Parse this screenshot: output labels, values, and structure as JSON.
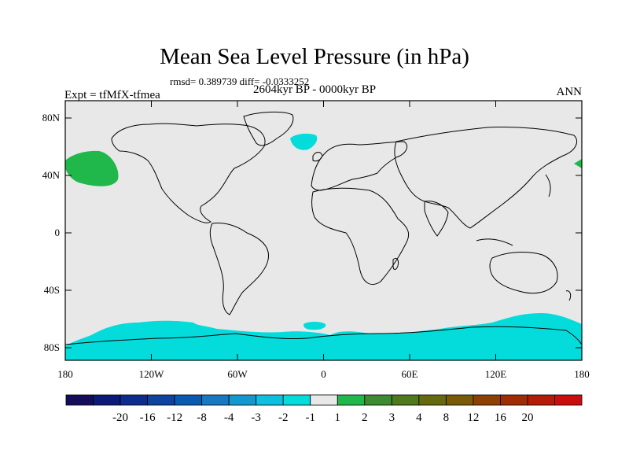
{
  "plot": {
    "title": "Mean Sea Level Pressure (in hPa)",
    "stats": "rmsd= 0.389739 diff= -0.0333252",
    "period": "2604kyr BP - 0000kyr BP",
    "experiment": "Expt = tfMfX-tfmea",
    "season": "ANN"
  },
  "axes": {
    "lat_labels": [
      "80N",
      "40N",
      "0",
      "40S",
      "80S"
    ],
    "lon_labels": [
      "180",
      "120W",
      "60W",
      "0",
      "60E",
      "120E",
      "180"
    ]
  },
  "colorbar": {
    "labels": [
      "-20",
      "-16",
      "-12",
      "-8",
      "-4",
      "-3",
      "-2",
      "-1",
      "1",
      "2",
      "3",
      "4",
      "8",
      "12",
      "16",
      "20"
    ],
    "colors": [
      "#150d5a",
      "#0b1a78",
      "#0d2d8e",
      "#0e43a0",
      "#0a5ab2",
      "#1878c2",
      "#1199cf",
      "#0ec0e0",
      "#04dcdc",
      "#e8e8e8",
      "#20b84a",
      "#3c8a32",
      "#4d7a1d",
      "#666a0e",
      "#7a5a06",
      "#8c4004",
      "#a02c06",
      "#b41c08",
      "#cc0d0d"
    ]
  },
  "palette": {
    "land_background": "#e8e8e8",
    "anomaly_negative_small": "#04dcdc",
    "anomaly_positive_small": "#20b84a"
  }
}
